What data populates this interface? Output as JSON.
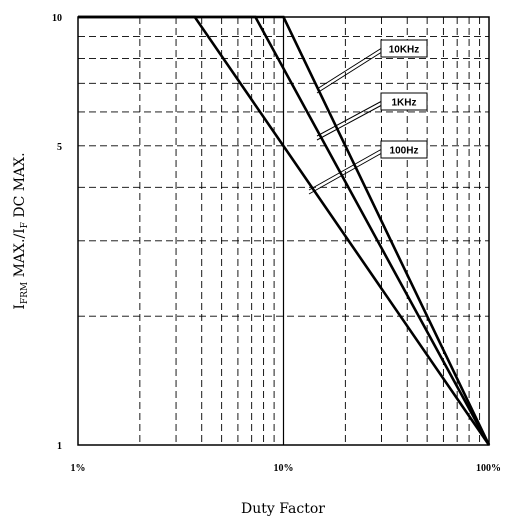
{
  "chart_data": {
    "type": "line",
    "x_scale": "log",
    "y_scale": "log",
    "xlim": [
      1,
      100
    ],
    "ylim": [
      1,
      10
    ],
    "grid": true,
    "x_ticks": [
      {
        "value": 1,
        "label": "1%"
      },
      {
        "value": 10,
        "label": "10%"
      },
      {
        "value": 100,
        "label": "100%"
      }
    ],
    "y_ticks": [
      {
        "value": 1,
        "label": "1"
      },
      {
        "value": 5,
        "label": "5"
      },
      {
        "value": 10,
        "label": "10"
      }
    ],
    "xlabel": "Duty Factor",
    "ylabel": {
      "parts": [
        {
          "text": "I",
          "sub": false
        },
        {
          "text": "FRM",
          "sub": true
        },
        {
          "text": " MAX./I",
          "sub": false
        },
        {
          "text": "F",
          "sub": true
        },
        {
          "text": " DC MAX.",
          "sub": false
        }
      ]
    },
    "series": [
      {
        "name": "10KHz",
        "x": [
          1,
          10,
          100
        ],
        "y": [
          10,
          10,
          1
        ]
      },
      {
        "name": "1KHz",
        "x": [
          1,
          7.3,
          100
        ],
        "y": [
          10,
          10,
          1
        ]
      },
      {
        "name": "100Hz",
        "x": [
          1,
          3.7,
          100
        ],
        "y": [
          10,
          10,
          1
        ]
      }
    ]
  }
}
